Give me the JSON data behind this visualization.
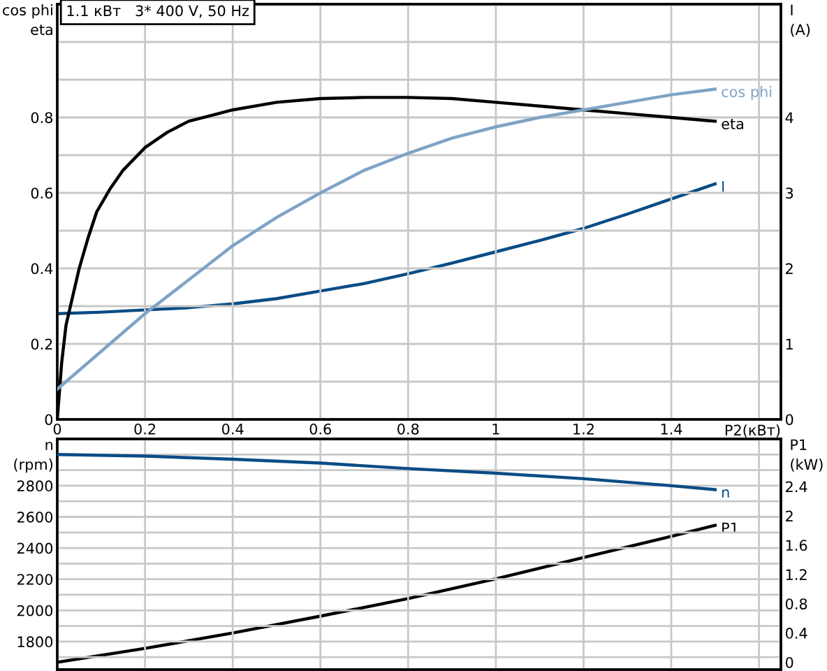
{
  "chart_data": [
    {
      "type": "line",
      "title": "1.1 кВт   3* 400 V, 50 Hz",
      "xlabel": "P2(кВт)",
      "ylabel": "cos phi\neta",
      "y2label": "I\n(A)",
      "xlim": [
        0,
        1.65
      ],
      "xticks": [
        0,
        0.2,
        0.4,
        0.6,
        0.8,
        1,
        1.2,
        1.4,
        {
          "value": 1.6,
          "label": null
        }
      ],
      "ylim": [
        0,
        1.1
      ],
      "yticks": [
        0,
        {
          "value": 0.1,
          "label": null
        },
        0.2,
        {
          "value": 0.3,
          "label": null
        },
        0.4,
        {
          "value": 0.5,
          "label": null
        },
        0.6,
        {
          "value": 0.7,
          "label": null
        },
        0.8,
        {
          "value": 0.9,
          "label": null
        },
        {
          "value": 1.0,
          "label": null
        }
      ],
      "y2lim": [
        0,
        5.5
      ],
      "y2ticks": [
        0,
        1,
        2,
        3,
        4
      ],
      "grid": true,
      "legend": false,
      "marker": "none",
      "line_style": "solid",
      "series": [
        {
          "name": "eta",
          "color": "#000000",
          "x": [
            0,
            0.01,
            0.02,
            0.03,
            0.05,
            0.07,
            0.09,
            0.12,
            0.15,
            0.2,
            0.25,
            0.3,
            0.35,
            0.4,
            0.5,
            0.6,
            0.7,
            0.8,
            0.9,
            1.0,
            1.1,
            1.2,
            1.3,
            1.4,
            1.5
          ],
          "values": [
            0,
            0.15,
            0.25,
            0.3,
            0.4,
            0.48,
            0.55,
            0.61,
            0.66,
            0.72,
            0.76,
            0.79,
            0.805,
            0.82,
            0.84,
            0.85,
            0.853,
            0.853,
            0.85,
            0.84,
            0.83,
            0.82,
            0.81,
            0.8,
            0.79
          ]
        },
        {
          "name": "cos phi",
          "color": "#7fa3c6",
          "x": [
            0,
            0.1,
            0.2,
            0.3,
            0.4,
            0.5,
            0.6,
            0.7,
            0.8,
            0.9,
            1.0,
            1.1,
            1.2,
            1.3,
            1.4,
            1.5
          ],
          "values": [
            0.08,
            0.18,
            0.28,
            0.37,
            0.46,
            0.535,
            0.6,
            0.66,
            0.705,
            0.745,
            0.775,
            0.8,
            0.82,
            0.84,
            0.86,
            0.875
          ]
        },
        {
          "name": "I",
          "color": "#0a4c85",
          "axis": "y2",
          "x": [
            0,
            0.1,
            0.2,
            0.3,
            0.4,
            0.5,
            0.6,
            0.7,
            0.8,
            0.9,
            1.0,
            1.1,
            1.2,
            1.3,
            1.4,
            1.5
          ],
          "values": [
            1.4,
            1.42,
            1.45,
            1.48,
            1.53,
            1.6,
            1.7,
            1.8,
            1.93,
            2.07,
            2.22,
            2.37,
            2.53,
            2.72,
            2.92,
            3.12
          ]
        }
      ]
    },
    {
      "type": "line",
      "ylabel": "n\n(rpm)",
      "y2label": "P1\n(kW)",
      "tick_labels": "y",
      "xlim": [
        0,
        1.65
      ],
      "xticks": [
        {
          "value": 0,
          "label": null
        },
        {
          "value": 0.2,
          "label": null
        },
        {
          "value": 0.4,
          "label": null
        },
        {
          "value": 0.6,
          "label": null
        },
        {
          "value": 0.8,
          "label": null
        },
        {
          "value": 1,
          "label": null
        },
        {
          "value": 1.2,
          "label": null
        },
        {
          "value": 1.4,
          "label": null
        },
        {
          "value": 1.6,
          "label": null
        }
      ],
      "ylim": [
        1620,
        3100
      ],
      "yticks": [
        {
          "value": 1700,
          "label": null
        },
        1800,
        {
          "value": 1900,
          "label": null
        },
        2000,
        {
          "value": 2100,
          "label": null
        },
        2200,
        {
          "value": 2300,
          "label": null
        },
        2400,
        {
          "value": 2500,
          "label": null
        },
        2600,
        {
          "value": 2700,
          "label": null
        },
        2800,
        {
          "value": 2900,
          "label": null
        },
        {
          "value": 3000,
          "label": null
        }
      ],
      "y2lim": [
        -0.1,
        3.05
      ],
      "y2ticks": [
        0,
        0.4,
        0.8,
        1.2,
        1.6,
        2,
        2.4
      ],
      "grid": true,
      "legend": false,
      "marker": "none",
      "line_style": "solid",
      "series": [
        {
          "name": "n",
          "color": "#0a4c85",
          "x": [
            0,
            0.2,
            0.4,
            0.6,
            0.8,
            1.0,
            1.2,
            1.4,
            1.5
          ],
          "values": [
            3000,
            2990,
            2970,
            2945,
            2910,
            2880,
            2845,
            2800,
            2775
          ]
        },
        {
          "name": "P1",
          "color": "#000000",
          "axis": "y2",
          "x": [
            0,
            0.2,
            0.4,
            0.6,
            0.8,
            1.0,
            1.2,
            1.4,
            1.5
          ],
          "values": [
            0.0,
            0.19,
            0.4,
            0.63,
            0.87,
            1.14,
            1.43,
            1.72,
            1.87
          ]
        }
      ]
    }
  ]
}
